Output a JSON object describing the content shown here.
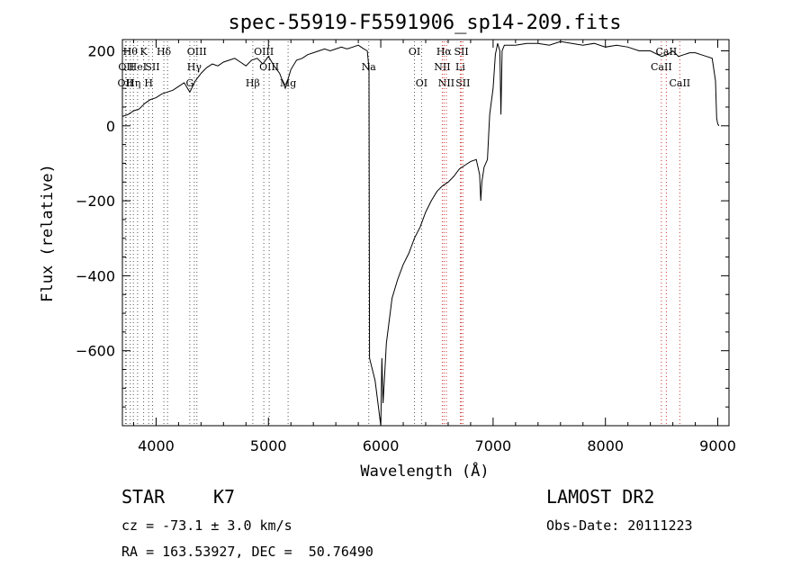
{
  "chart_data": {
    "type": "line",
    "title": "spec-55919-F5591906_sp14-209.fits",
    "xlabel": "Wavelength (Å)",
    "ylabel": "Flux (relative)",
    "xlim": [
      3700,
      9100
    ],
    "ylim": [
      -800,
      230
    ],
    "xticks": [
      4000,
      5000,
      6000,
      7000,
      8000,
      9000
    ],
    "yticks": [
      200,
      0,
      -200,
      -400,
      -600
    ],
    "grid": false,
    "series": [
      {
        "x": [
          3700,
          3750,
          3800,
          3850,
          3900,
          3950,
          4000,
          4050,
          4100,
          4150,
          4200,
          4250,
          4300,
          4350,
          4400,
          4450,
          4500,
          4550,
          4600,
          4650,
          4700,
          4750,
          4800,
          4850,
          4900,
          4950,
          5000,
          5050,
          5100,
          5150,
          5200,
          5250,
          5300,
          5350,
          5400,
          5450,
          5500,
          5550,
          5600,
          5650,
          5700,
          5750,
          5800,
          5850,
          5880,
          5890,
          5895,
          5900,
          5950,
          6000,
          6010,
          6020,
          6030,
          6050,
          6100,
          6150,
          6200,
          6250,
          6300,
          6350,
          6400,
          6450,
          6500,
          6550,
          6600,
          6650,
          6700,
          6750,
          6800,
          6850,
          6880,
          6890,
          6900,
          6920,
          6950,
          6970,
          7000,
          7020,
          7040,
          7060,
          7070,
          7080,
          7100,
          7200,
          7300,
          7400,
          7500,
          7600,
          7700,
          7800,
          7900,
          8000,
          8100,
          8200,
          8300,
          8400,
          8500,
          8550,
          8600,
          8650,
          8700,
          8750,
          8800,
          8850,
          8900,
          8950,
          8980,
          8990,
          9000,
          9010
        ],
        "values": [
          25,
          30,
          40,
          45,
          60,
          70,
          75,
          85,
          90,
          95,
          105,
          115,
          90,
          120,
          140,
          155,
          165,
          160,
          170,
          175,
          180,
          170,
          160,
          175,
          180,
          165,
          185,
          160,
          140,
          100,
          150,
          175,
          180,
          190,
          195,
          200,
          205,
          200,
          205,
          210,
          205,
          210,
          215,
          205,
          200,
          170,
          160,
          -620,
          -680,
          -800,
          -620,
          -740,
          -690,
          -580,
          -460,
          -410,
          -370,
          -340,
          -300,
          -270,
          -230,
          -200,
          -175,
          -160,
          -150,
          -135,
          -115,
          -105,
          -95,
          -90,
          -130,
          -200,
          -150,
          -110,
          -90,
          30,
          100,
          190,
          220,
          200,
          30,
          200,
          215,
          215,
          220,
          220,
          215,
          225,
          220,
          215,
          220,
          210,
          215,
          210,
          200,
          200,
          185,
          190,
          200,
          185,
          190,
          195,
          195,
          190,
          185,
          180,
          120,
          20,
          5,
          0
        ]
      }
    ],
    "line_markers": [
      {
        "wl": 3727,
        "label": "OII",
        "row": 2,
        "color": "#555555"
      },
      {
        "wl": 3734,
        "label": "OII",
        "row": 1,
        "color": "#555555"
      },
      {
        "wl": 3770,
        "label": "Hθ",
        "row": 0,
        "color": "#555555"
      },
      {
        "wl": 3798,
        "label": "Hη",
        "row": 2,
        "color": "#555555"
      },
      {
        "wl": 3835,
        "label": "HeI",
        "row": 1,
        "color": "#555555"
      },
      {
        "wl": 3889,
        "label": "K",
        "row": 0,
        "color": "#555555"
      },
      {
        "wl": 3934,
        "label": "H",
        "row": 2,
        "color": "#555555"
      },
      {
        "wl": 3968,
        "label": "SII",
        "row": 1,
        "color": "#555555"
      },
      {
        "wl": 4069,
        "label": "Hδ",
        "row": 0,
        "color": "#555555"
      },
      {
        "wl": 4102,
        "label": "",
        "row": 0,
        "color": "#555555"
      },
      {
        "wl": 4300,
        "label": "G",
        "row": 2,
        "color": "#555555"
      },
      {
        "wl": 4340,
        "label": "Hγ",
        "row": 1,
        "color": "#555555"
      },
      {
        "wl": 4363,
        "label": "OIII",
        "row": 0,
        "color": "#555555"
      },
      {
        "wl": 4861,
        "label": "Hβ",
        "row": 2,
        "color": "#555555"
      },
      {
        "wl": 4959,
        "label": "OIII",
        "row": 0,
        "color": "#555555"
      },
      {
        "wl": 5007,
        "label": "OIII",
        "row": 1,
        "color": "#555555"
      },
      {
        "wl": 5175,
        "label": "Mg",
        "row": 2,
        "color": "#555555"
      },
      {
        "wl": 5893,
        "label": "Na",
        "row": 1,
        "color": "#555555"
      },
      {
        "wl": 6300,
        "label": "OI",
        "row": 0,
        "color": "#555555"
      },
      {
        "wl": 6363,
        "label": "OI",
        "row": 2,
        "color": "#555555"
      },
      {
        "wl": 6548,
        "label": "NII",
        "row": 1,
        "color": "#cc3333"
      },
      {
        "wl": 6563,
        "label": "Hα",
        "row": 0,
        "color": "#cc3333"
      },
      {
        "wl": 6584,
        "label": "NII",
        "row": 2,
        "color": "#cc3333"
      },
      {
        "wl": 6708,
        "label": "Li",
        "row": 1,
        "color": "#cc3333"
      },
      {
        "wl": 6717,
        "label": "SII",
        "row": 0,
        "color": "#cc3333"
      },
      {
        "wl": 6731,
        "label": "SII",
        "row": 2,
        "color": "#cc3333"
      },
      {
        "wl": 8498,
        "label": "CaII",
        "row": 1,
        "color": "#cc3333"
      },
      {
        "wl": 8542,
        "label": "CaII",
        "row": 0,
        "color": "#cc3333"
      },
      {
        "wl": 8662,
        "label": "CaII",
        "row": 2,
        "color": "#cc3333"
      }
    ]
  },
  "info": {
    "class_label": "STAR",
    "subclass_label": "K7",
    "survey_label": "LAMOST DR2",
    "cz_text": "cz = -73.1 ± 3.0 km/s",
    "obs_date_text": "Obs-Date: 20111223",
    "radec_text": "RA = 163.53927, DEC =  50.76490"
  }
}
